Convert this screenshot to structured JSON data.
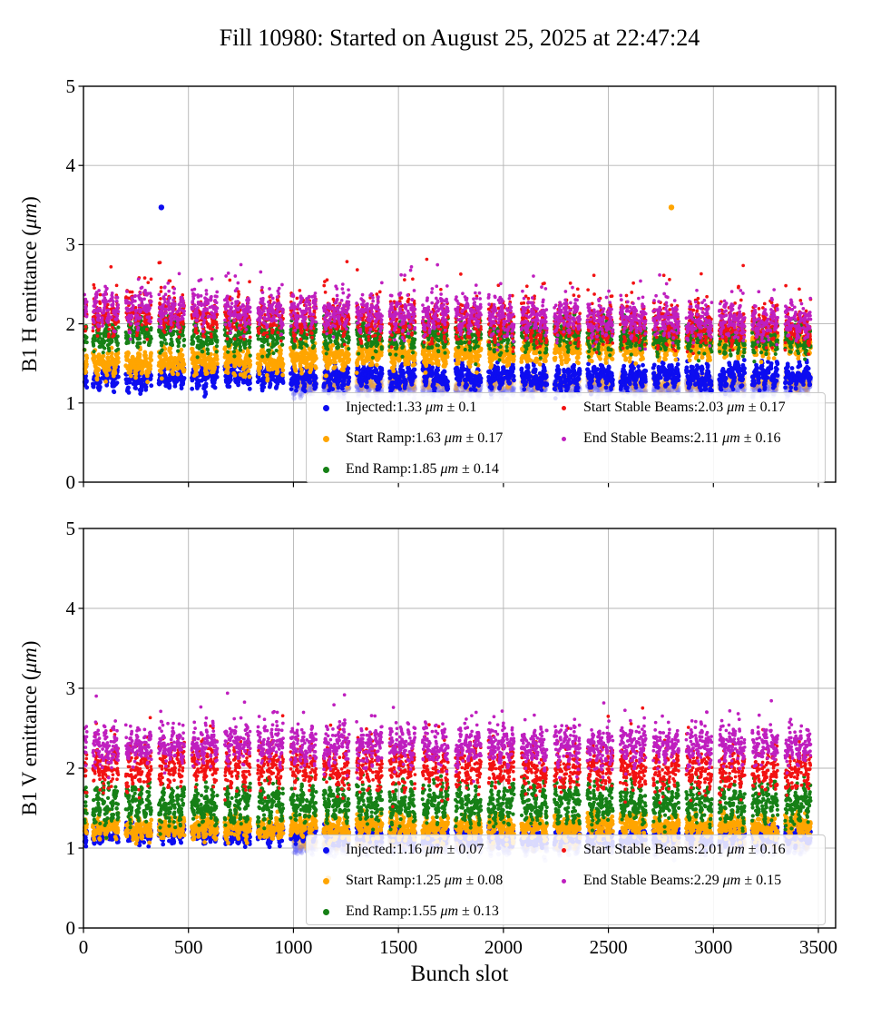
{
  "title": "Fill 10980: Started on August 25, 2025 at 22:47:24",
  "unit": "μm",
  "pm_sign": "±",
  "chart_data": {
    "type": "scatter",
    "title": "Fill 10980: Started on August 25, 2025 at 22:47:24",
    "xlabel": "Bunch slot",
    "xlim": [
      0,
      3500
    ],
    "xticks": [
      0,
      500,
      1000,
      1500,
      2000,
      2500,
      3000,
      3500
    ],
    "grid": true,
    "grid_color": "#b4b4b4",
    "legend_position": "lower right, 2 columns",
    "fill_pattern": {
      "indicator_train": {
        "start": 5,
        "length": 12
      },
      "groups": 22,
      "first_group_start": 45,
      "trains_per_group": 3,
      "bunches_per_train": 36,
      "train_period": 43,
      "group_period": 157
    },
    "subplots": [
      {
        "name": "B1 H",
        "ylabel_prefix": "B1 H emittance (",
        "ylabel_suffix": ")",
        "ylim": [
          0,
          5
        ],
        "yticks": [
          0,
          1,
          2,
          3,
          4,
          5
        ],
        "series": [
          {
            "name": "Injected",
            "mean": "1.33",
            "std": "0.1",
            "color": "#0d0df0",
            "radius": 2.4,
            "marker_px": 7,
            "base": 1.33,
            "slope": 0,
            "sigma": 0.05,
            "wave": 0.08
          },
          {
            "name": "Start Ramp",
            "mean": "1.63",
            "std": "0.17",
            "color": "#ffa500",
            "radius": 2.4,
            "marker_px": 7,
            "base": 1.48,
            "slope": 0.3,
            "sigma": 0.06,
            "wave": 0.08
          },
          {
            "name": "End Ramp",
            "mean": "1.85",
            "std": "0.14",
            "color": "#168016",
            "radius": 2.1,
            "marker_px": 7,
            "base": 1.88,
            "slope": -0.06,
            "sigma": 0.07,
            "wave": 0.1
          },
          {
            "name": "Start Stable Beams",
            "mean": "2.03",
            "std": "0.17",
            "color": "#f21212",
            "radius": 1.85,
            "marker_px": 5,
            "base": 2.12,
            "slope": -0.18,
            "sigma": 0.09,
            "wave": 0.12,
            "spike": 0.03
          },
          {
            "name": "End Stable Beams",
            "mean": "2.11",
            "std": "0.16",
            "color": "#bf1fbf",
            "radius": 1.85,
            "marker_px": 5,
            "base": 2.2,
            "slope": -0.18,
            "sigma": 0.09,
            "wave": 0.11,
            "spike": 0.02
          }
        ],
        "ghosts": [
          {
            "color": "rgba(110,110,245,0.30)",
            "base": 1.2,
            "from_slot": 1000,
            "radius": 2.7
          },
          {
            "color": "rgba(255,170,30,0.20)",
            "base": 1.27,
            "from_slot": 1000,
            "radius": 2.7
          }
        ],
        "outliers": [
          {
            "series": "Injected",
            "x": 371,
            "y": 3.47
          },
          {
            "series": "Start Ramp",
            "x": 2800,
            "y": 3.47
          }
        ]
      },
      {
        "name": "B1 V",
        "ylabel_prefix": "B1 V emittance (",
        "ylabel_suffix": ")",
        "ylim": [
          0,
          5
        ],
        "yticks": [
          0,
          1,
          2,
          3,
          4,
          5
        ],
        "series": [
          {
            "name": "Injected",
            "mean": "1.16",
            "std": "0.07",
            "color": "#0d0df0",
            "radius": 2.4,
            "marker_px": 7,
            "base": 1.16,
            "slope": 0,
            "sigma": 0.04,
            "wave": 0.05
          },
          {
            "name": "Start Ramp",
            "mean": "1.25",
            "std": "0.08",
            "color": "#ffa500",
            "radius": 2.4,
            "marker_px": 7,
            "base": 1.25,
            "slope": 0.03,
            "sigma": 0.05,
            "wave": 0.07
          },
          {
            "name": "End Ramp",
            "mean": "1.55",
            "std": "0.13",
            "color": "#168016",
            "radius": 2.1,
            "marker_px": 7,
            "base": 1.55,
            "slope": 0.02,
            "sigma": 0.08,
            "wave": 0.14
          },
          {
            "name": "Start Stable Beams",
            "mean": "2.01",
            "std": "0.16",
            "color": "#f21212",
            "radius": 1.85,
            "marker_px": 5,
            "base": 2.03,
            "slope": -0.05,
            "sigma": 0.1,
            "wave": 0.12,
            "spike": 0.02
          },
          {
            "name": "End Stable Beams",
            "mean": "2.29",
            "std": "0.15",
            "color": "#bf1fbf",
            "radius": 1.85,
            "marker_px": 5,
            "base": 2.3,
            "slope": -0.04,
            "sigma": 0.1,
            "wave": 0.11,
            "spike": 0.015
          }
        ],
        "ghosts": [
          {
            "color": "rgba(110,110,245,0.30)",
            "base": 1.04,
            "from_slot": 1000,
            "radius": 2.7
          },
          {
            "color": "rgba(255,170,30,0.20)",
            "base": 1.1,
            "from_slot": 1000,
            "radius": 2.7
          }
        ],
        "outliers": [
          {
            "series": "Injected",
            "x": 1160,
            "y": 0.95
          },
          {
            "series": "Start Ramp",
            "x": 1166,
            "y": 0.62
          }
        ]
      }
    ]
  }
}
